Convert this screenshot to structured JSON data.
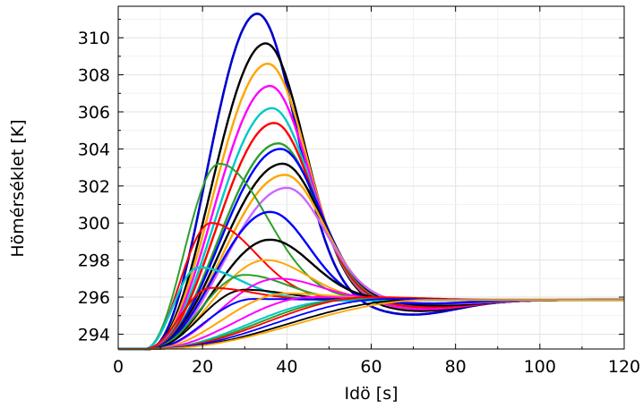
{
  "chart_data": {
    "type": "line",
    "title": "",
    "xlabel": "Idö [s]",
    "ylabel": "Hömérséklet [K]",
    "xlim": [
      0,
      120
    ],
    "ylim": [
      293.2,
      311.7
    ],
    "xticks": [
      0,
      20,
      40,
      60,
      80,
      100,
      120
    ],
    "yticks": [
      294,
      296,
      298,
      300,
      302,
      304,
      306,
      308,
      310
    ],
    "grid": true,
    "legend": "none",
    "baseline": 293.2,
    "final_value": 295.85,
    "series": [
      {
        "color": "#0000cc",
        "t0": 7,
        "peak_t": 33,
        "peak": 311.3,
        "rise": 10,
        "fall": 13,
        "under": -0.8,
        "width": 2.6
      },
      {
        "color": "#000000",
        "t0": 7,
        "peak_t": 35,
        "peak": 309.7,
        "rise": 10,
        "fall": 13,
        "under": -0.6,
        "width": 2.4
      },
      {
        "color": "#ffa500",
        "t0": 7,
        "peak_t": 35.5,
        "peak": 308.6,
        "rise": 10,
        "fall": 13,
        "under": -0.5,
        "width": 2.4
      },
      {
        "color": "#ff00ff",
        "t0": 7,
        "peak_t": 36,
        "peak": 307.4,
        "rise": 10,
        "fall": 13,
        "under": -0.5,
        "width": 2.4
      },
      {
        "color": "#00c8c8",
        "t0": 7,
        "peak_t": 36.5,
        "peak": 306.2,
        "rise": 10,
        "fall": 13,
        "under": -0.4,
        "width": 2.4
      },
      {
        "color": "#ff0000",
        "t0": 7,
        "peak_t": 37,
        "peak": 305.4,
        "rise": 10,
        "fall": 13,
        "under": -0.4,
        "width": 2.4
      },
      {
        "color": "#2ca02c",
        "t0": 7,
        "peak_t": 38,
        "peak": 304.3,
        "rise": 10,
        "fall": 13,
        "under": -0.3,
        "width": 2.4
      },
      {
        "color": "#0000ff",
        "t0": 7,
        "peak_t": 38.5,
        "peak": 304.0,
        "rise": 10,
        "fall": 13,
        "under": -0.3,
        "width": 2.4
      },
      {
        "color": "#000000",
        "t0": 7,
        "peak_t": 39,
        "peak": 303.2,
        "rise": 10,
        "fall": 13,
        "under": -0.3,
        "width": 2.4
      },
      {
        "color": "#ffa500",
        "t0": 7,
        "peak_t": 39.5,
        "peak": 302.6,
        "rise": 10,
        "fall": 13,
        "under": -0.2,
        "width": 2.4
      },
      {
        "color": "#cc66ff",
        "t0": 7,
        "peak_t": 40,
        "peak": 301.9,
        "rise": 10,
        "fall": 13,
        "under": -0.2,
        "width": 2.4
      },
      {
        "color": "#2ca02c",
        "t0": 6,
        "peak_t": 24,
        "peak": 303.2,
        "rise": 8,
        "fall": 16,
        "under": 0,
        "width": 2.0
      },
      {
        "color": "#0000ff",
        "t0": 7,
        "peak_t": 36,
        "peak": 300.6,
        "rise": 9,
        "fall": 13,
        "under": -0.2,
        "width": 2.4
      },
      {
        "color": "#ff0000",
        "t0": 6,
        "peak_t": 22,
        "peak": 300.0,
        "rise": 7,
        "fall": 15,
        "under": 0,
        "width": 2.0
      },
      {
        "color": "#000000",
        "t0": 7,
        "peak_t": 36,
        "peak": 299.1,
        "rise": 9,
        "fall": 14,
        "under": 0,
        "width": 2.4
      },
      {
        "color": "#ffa500",
        "t0": 7,
        "peak_t": 35,
        "peak": 298.0,
        "rise": 9,
        "fall": 14,
        "under": 0,
        "width": 2.0
      },
      {
        "color": "#00c8c8",
        "t0": 6,
        "peak_t": 19,
        "peak": 297.6,
        "rise": 7,
        "fall": 14,
        "under": 0,
        "width": 2.4
      },
      {
        "color": "#2ca02c",
        "t0": 7,
        "peak_t": 30,
        "peak": 297.2,
        "rise": 9,
        "fall": 14,
        "under": 0,
        "width": 2.0
      },
      {
        "color": "#ff00ff",
        "t0": 7,
        "peak_t": 38,
        "peak": 297.0,
        "rise": 10,
        "fall": 14,
        "under": 0,
        "width": 2.0
      },
      {
        "color": "#000000",
        "t0": 7,
        "peak_t": 30,
        "peak": 296.4,
        "rise": 9,
        "fall": 14,
        "under": 0,
        "width": 2.0
      },
      {
        "color": "#ff0000",
        "t0": 6,
        "peak_t": 22,
        "peak": 296.5,
        "rise": 8,
        "fall": 14,
        "under": 0,
        "width": 2.0
      },
      {
        "color": "#0000ff",
        "t0": 7,
        "peak_t": 32,
        "peak": 295.9,
        "rise": 10,
        "fall": 14,
        "under": 0,
        "width": 2.0
      },
      {
        "color": "#ffa500",
        "t0": 7,
        "peak_t": 40,
        "peak": 296.2,
        "rise": 12,
        "fall": 16,
        "under": 0,
        "width": 2.0
      },
      {
        "color": "#ff00ff",
        "t0": 7,
        "peak_t": 46,
        "peak": 296.0,
        "rise": 14,
        "fall": 16,
        "under": 0,
        "width": 2.0
      },
      {
        "color": "#00c8c8",
        "t0": 7,
        "peak_t": 52,
        "peak": 295.8,
        "rise": 16,
        "fall": 18,
        "under": 0,
        "width": 2.0
      },
      {
        "color": "#2ca02c",
        "t0": 7,
        "peak_t": 56,
        "peak": 295.9,
        "rise": 18,
        "fall": 18,
        "under": 0,
        "width": 2.0
      },
      {
        "color": "#000000",
        "t0": 7,
        "peak_t": 70,
        "peak": 295.85,
        "rise": 24,
        "fall": 20,
        "under": 0,
        "width": 1.8
      },
      {
        "color": "#ff0000",
        "t0": 7,
        "peak_t": 60,
        "peak": 296.0,
        "rise": 18,
        "fall": 18,
        "under": 0,
        "width": 1.8
      },
      {
        "color": "#0000ff",
        "t0": 7,
        "peak_t": 64,
        "peak": 295.9,
        "rise": 20,
        "fall": 18,
        "under": 0,
        "width": 1.8
      },
      {
        "color": "#ffa500",
        "t0": 7,
        "peak_t": 74,
        "peak": 295.85,
        "rise": 26,
        "fall": 20,
        "under": 0,
        "width": 1.8
      }
    ]
  }
}
